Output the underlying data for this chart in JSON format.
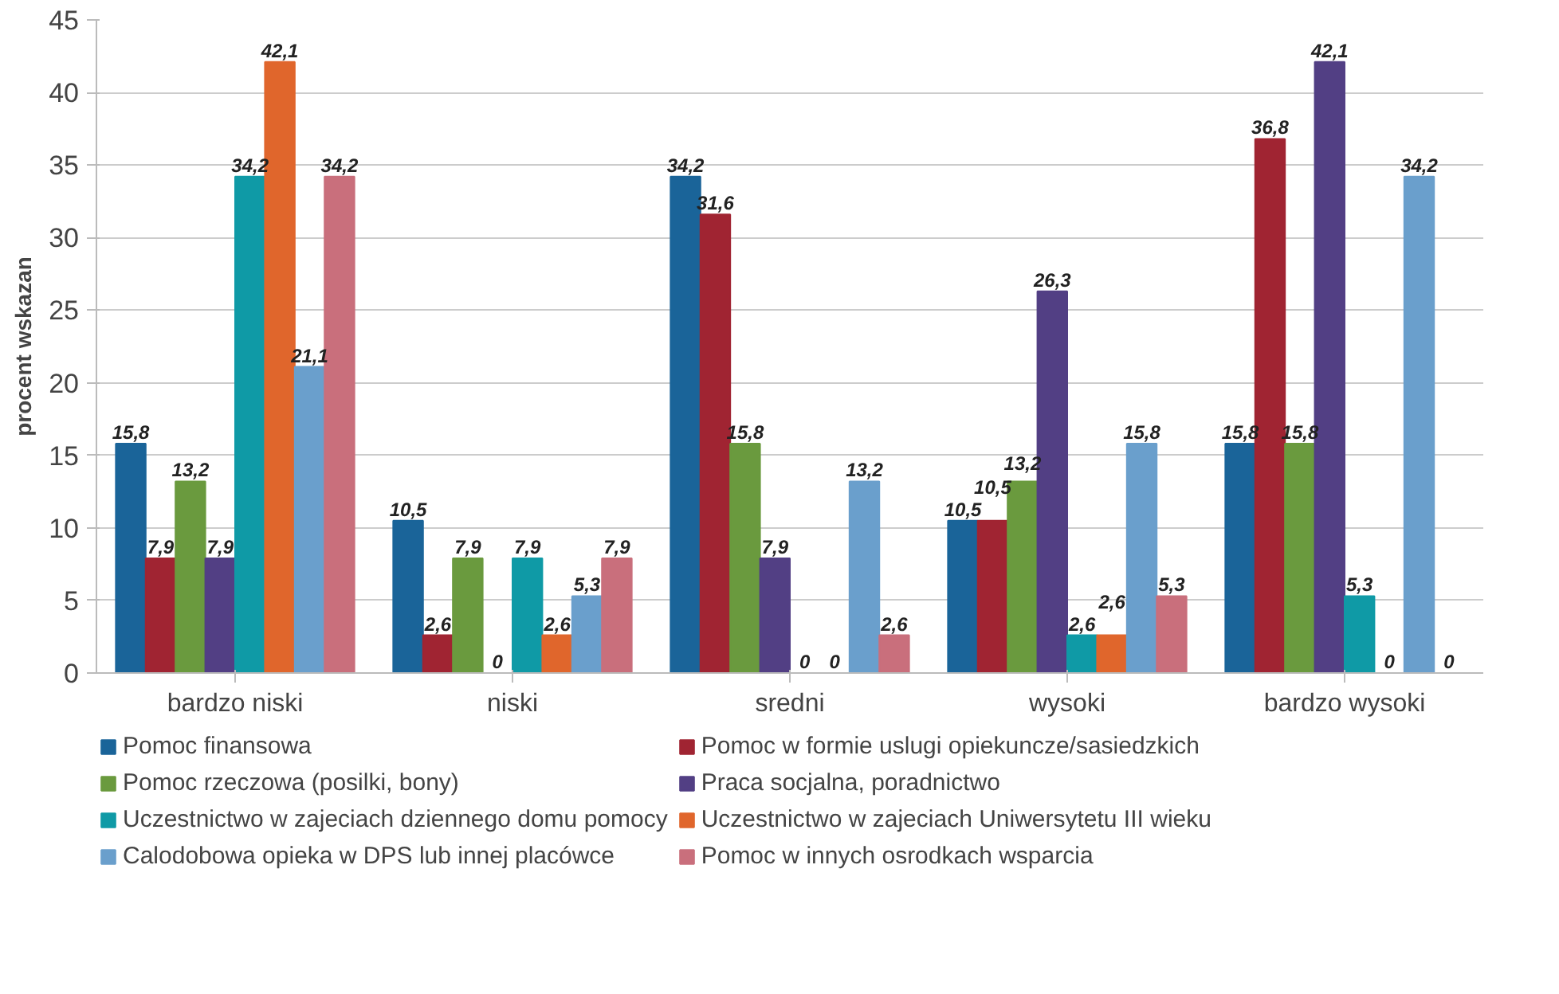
{
  "chart_data": {
    "type": "bar",
    "ylabel": "procent wskazan",
    "categories": [
      "bardzo niski",
      "niski",
      "sredni",
      "wysoki",
      "bardzo wysoki"
    ],
    "ylim": [
      0,
      45
    ],
    "yticks": [
      0,
      5,
      10,
      15,
      20,
      25,
      30,
      35,
      40,
      45
    ],
    "grid": "y",
    "legend": "bottom",
    "data_labels": true,
    "series": [
      {
        "name": "Pomoc finansowa",
        "color": "#1a6499",
        "values": [
          15.8,
          10.5,
          34.2,
          10.5,
          15.8
        ],
        "value_labels": [
          "15,8",
          "10,5",
          "34,2",
          "10,5",
          "15,8"
        ]
      },
      {
        "name": "Pomoc w formie uslugi opiekuncze/sasiedzkich",
        "color": "#a02432",
        "values": [
          7.9,
          2.6,
          31.6,
          10.5,
          36.8
        ],
        "value_labels": [
          "7,9",
          "2,6",
          "31,6",
          "10,5",
          "36,8"
        ]
      },
      {
        "name": "Pomoc rzeczowa (posilki, bony)",
        "color": "#6a9a3e",
        "values": [
          13.2,
          7.9,
          15.8,
          13.2,
          15.8
        ],
        "value_labels": [
          "13,2",
          "7,9",
          "15,8",
          "13,2",
          "15,8"
        ]
      },
      {
        "name": "Praca socjalna, poradnictwo",
        "color": "#523f84",
        "values": [
          7.9,
          0,
          7.9,
          26.3,
          42.1
        ],
        "value_labels": [
          "7,9",
          "0",
          "7,9",
          "26,3",
          "42,1"
        ]
      },
      {
        "name": "Uczestnictwo w zajeciach dziennego domu pomocy",
        "color": "#0f9aa6",
        "values": [
          34.2,
          7.9,
          0,
          2.6,
          5.3
        ],
        "value_labels": [
          "34,2",
          "7,9",
          "0",
          "2,6",
          "5,3"
        ]
      },
      {
        "name": "Uczestnictwo w zajeciach Uniwersytetu III wieku",
        "color": "#e0662c",
        "values": [
          42.1,
          2.6,
          0,
          2.6,
          0
        ],
        "value_labels": [
          "42,1",
          "2,6",
          "0",
          "2,6",
          "0"
        ]
      },
      {
        "name": "Calodobowa opieka w DPS lub innej placówce",
        "color": "#6a9fcc",
        "values": [
          21.1,
          5.3,
          13.2,
          15.8,
          34.2
        ],
        "value_labels": [
          "21,1",
          "5,3",
          "13,2",
          "15,8",
          "34,2"
        ]
      },
      {
        "name": "Pomoc w innych osrodkach wsparcia",
        "color": "#c96f7c",
        "values": [
          34.2,
          7.9,
          2.6,
          5.3,
          0
        ],
        "value_labels": [
          "34,2",
          "7,9",
          "2,6",
          "5,3",
          "0"
        ]
      }
    ]
  }
}
